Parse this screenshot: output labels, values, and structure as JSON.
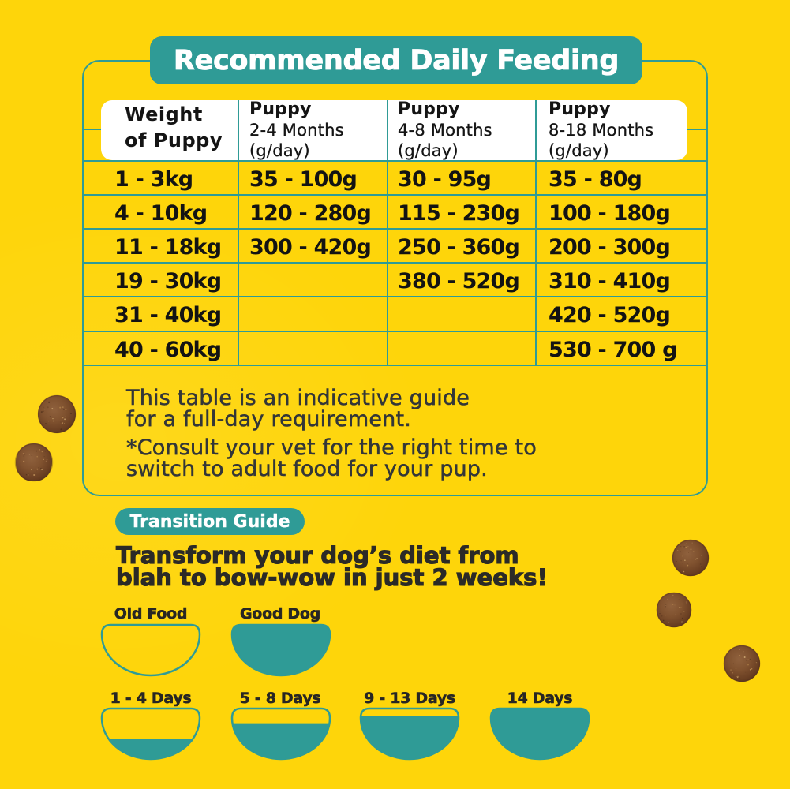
{
  "colors": {
    "background": "#FED50A",
    "teal": "#2F9B96",
    "white": "#FFFFFF",
    "table_text": "#131313",
    "note_text": "#333638",
    "headline_text": "#2B2A27",
    "kibble_brown": "#855838"
  },
  "title_banner": {
    "label": "Recommended Daily Feeding"
  },
  "feeding_table": {
    "header": {
      "weight_line1": "Weight",
      "weight_line2": "of Puppy",
      "age_cols": [
        {
          "title": "Puppy",
          "range": "2-4 Months",
          "unit": "(g/day)"
        },
        {
          "title": "Puppy",
          "range": "4-8 Months",
          "unit": "(g/day)"
        },
        {
          "title": "Puppy",
          "range": "8-18 Months",
          "unit": "(g/day)"
        }
      ]
    },
    "rows": [
      {
        "weight": "1 - 3kg",
        "m2_4": "35 - 100g",
        "m4_8": "30 - 95g",
        "m8_18": "35 - 80g"
      },
      {
        "weight": "4 - 10kg",
        "m2_4": "120 - 280g",
        "m4_8": "115 - 230g",
        "m8_18": "100 - 180g"
      },
      {
        "weight": "11 - 18kg",
        "m2_4": "300 - 420g",
        "m4_8": "250 - 360g",
        "m8_18": "200 - 300g"
      },
      {
        "weight": "19 - 30kg",
        "m2_4": "",
        "m4_8": "380 - 520g",
        "m8_18": "310 - 410g"
      },
      {
        "weight": "31 - 40kg",
        "m2_4": "",
        "m4_8": "",
        "m8_18": "420 - 520g"
      },
      {
        "weight": "40 - 60kg",
        "m2_4": "",
        "m4_8": "",
        "m8_18": "530 - 700 g"
      }
    ]
  },
  "notes": {
    "guide_line1": "This table is an indicative guide",
    "guide_line2": "for a full-day requirement.",
    "vet_line1": "*Consult your vet for the right time to",
    "vet_line2": "switch to adult food for your pup."
  },
  "transition": {
    "badge": "Transition Guide",
    "headline_line1": "Transform your dog’s diet from",
    "headline_line2": "blah to bow-wow in just 2 weeks!",
    "bowls": [
      {
        "label": "Old Food",
        "fill_percent": 0
      },
      {
        "label": "Good Dog",
        "fill_percent": 100
      },
      {
        "label": "1 - 4 Days",
        "fill_percent": 40
      },
      {
        "label": "5 - 8 Days",
        "fill_percent": 71
      },
      {
        "label": "9 - 13 Days",
        "fill_percent": 85
      },
      {
        "label": "14 Days",
        "fill_percent": 100
      }
    ]
  }
}
